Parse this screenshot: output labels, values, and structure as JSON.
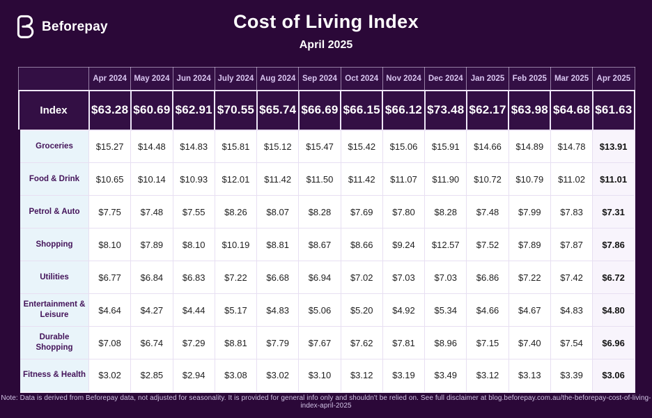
{
  "page": {
    "brand": "Beforepay",
    "title": "Cost of Living Index",
    "subtitle": "April 2025",
    "note": "Note: Data is derived from Beforepay data, not adjusted for seasonality. It is provided for general info only and shouldn't be relied on. See full disclaimer at blog.beforepay.com.au/the-beforepay-cost-of-living-index-april-2025"
  },
  "colors": {
    "page_background": "#2b0838",
    "dark_cell_background": "#330f44",
    "month_header_text": "#d9c6f0",
    "label_cell_background": "#e9f4fa",
    "label_text": "#431359",
    "grid_border": "#e7dff2",
    "index_border": "#efe8f8",
    "last_column_background": "#f8f4fc",
    "note_text": "#d2c4e6"
  },
  "chart_data": {
    "type": "table",
    "title": "Cost of Living Index",
    "subtitle": "April 2025",
    "columns": [
      "Apr 2024",
      "May 2024",
      "Jun 2024",
      "July 2024",
      "Aug 2024",
      "Sep 2024",
      "Oct 2024",
      "Nov 2024",
      "Dec 2024",
      "Jan 2025",
      "Feb 2025",
      "Mar 2025",
      "Apr 2025"
    ],
    "index_row": {
      "label": "Index",
      "values": [
        "$63.28",
        "$60.69",
        "$62.91",
        "$70.55",
        "$65.74",
        "$66.69",
        "$66.15",
        "$66.12",
        "$73.48",
        "$62.17",
        "$63.98",
        "$64.68",
        "$61.63"
      ]
    },
    "rows": [
      {
        "label": "Groceries",
        "values": [
          "$15.27",
          "$14.48",
          "$14.83",
          "$15.81",
          "$15.12",
          "$15.47",
          "$15.42",
          "$15.06",
          "$15.91",
          "$14.66",
          "$14.89",
          "$14.78",
          "$13.91"
        ]
      },
      {
        "label": "Food & Drink",
        "values": [
          "$10.65",
          "$10.14",
          "$10.93",
          "$12.01",
          "$11.42",
          "$11.50",
          "$11.42",
          "$11.07",
          "$11.90",
          "$10.72",
          "$10.79",
          "$11.02",
          "$11.01"
        ]
      },
      {
        "label": "Petrol & Auto",
        "values": [
          "$7.75",
          "$7.48",
          "$7.55",
          "$8.26",
          "$8.07",
          "$8.28",
          "$7.69",
          "$7.80",
          "$8.28",
          "$7.48",
          "$7.99",
          "$7.83",
          "$7.31"
        ]
      },
      {
        "label": "Shopping",
        "values": [
          "$8.10",
          "$7.89",
          "$8.10",
          "$10.19",
          "$8.81",
          "$8.67",
          "$8.66",
          "$9.24",
          "$12.57",
          "$7.52",
          "$7.89",
          "$7.87",
          "$7.86"
        ]
      },
      {
        "label": "Utilities",
        "values": [
          "$6.77",
          "$6.84",
          "$6.83",
          "$7.22",
          "$6.68",
          "$6.94",
          "$7.02",
          "$7.03",
          "$7.03",
          "$6.86",
          "$7.22",
          "$7.42",
          "$6.72"
        ]
      },
      {
        "label": "Entertainment & Leisure",
        "values": [
          "$4.64",
          "$4.27",
          "$4.44",
          "$5.17",
          "$4.83",
          "$5.06",
          "$5.20",
          "$4.92",
          "$5.34",
          "$4.66",
          "$4.67",
          "$4.83",
          "$4.80"
        ]
      },
      {
        "label": "Durable Shopping",
        "values": [
          "$7.08",
          "$6.74",
          "$7.29",
          "$8.81",
          "$7.79",
          "$7.67",
          "$7.62",
          "$7.81",
          "$8.96",
          "$7.15",
          "$7.40",
          "$7.54",
          "$6.96"
        ]
      },
      {
        "label": "Fitness & Health",
        "values": [
          "$3.02",
          "$2.85",
          "$2.94",
          "$3.08",
          "$3.02",
          "$3.10",
          "$3.12",
          "$3.19",
          "$3.49",
          "$3.12",
          "$3.13",
          "$3.39",
          "$3.06"
        ]
      }
    ]
  }
}
